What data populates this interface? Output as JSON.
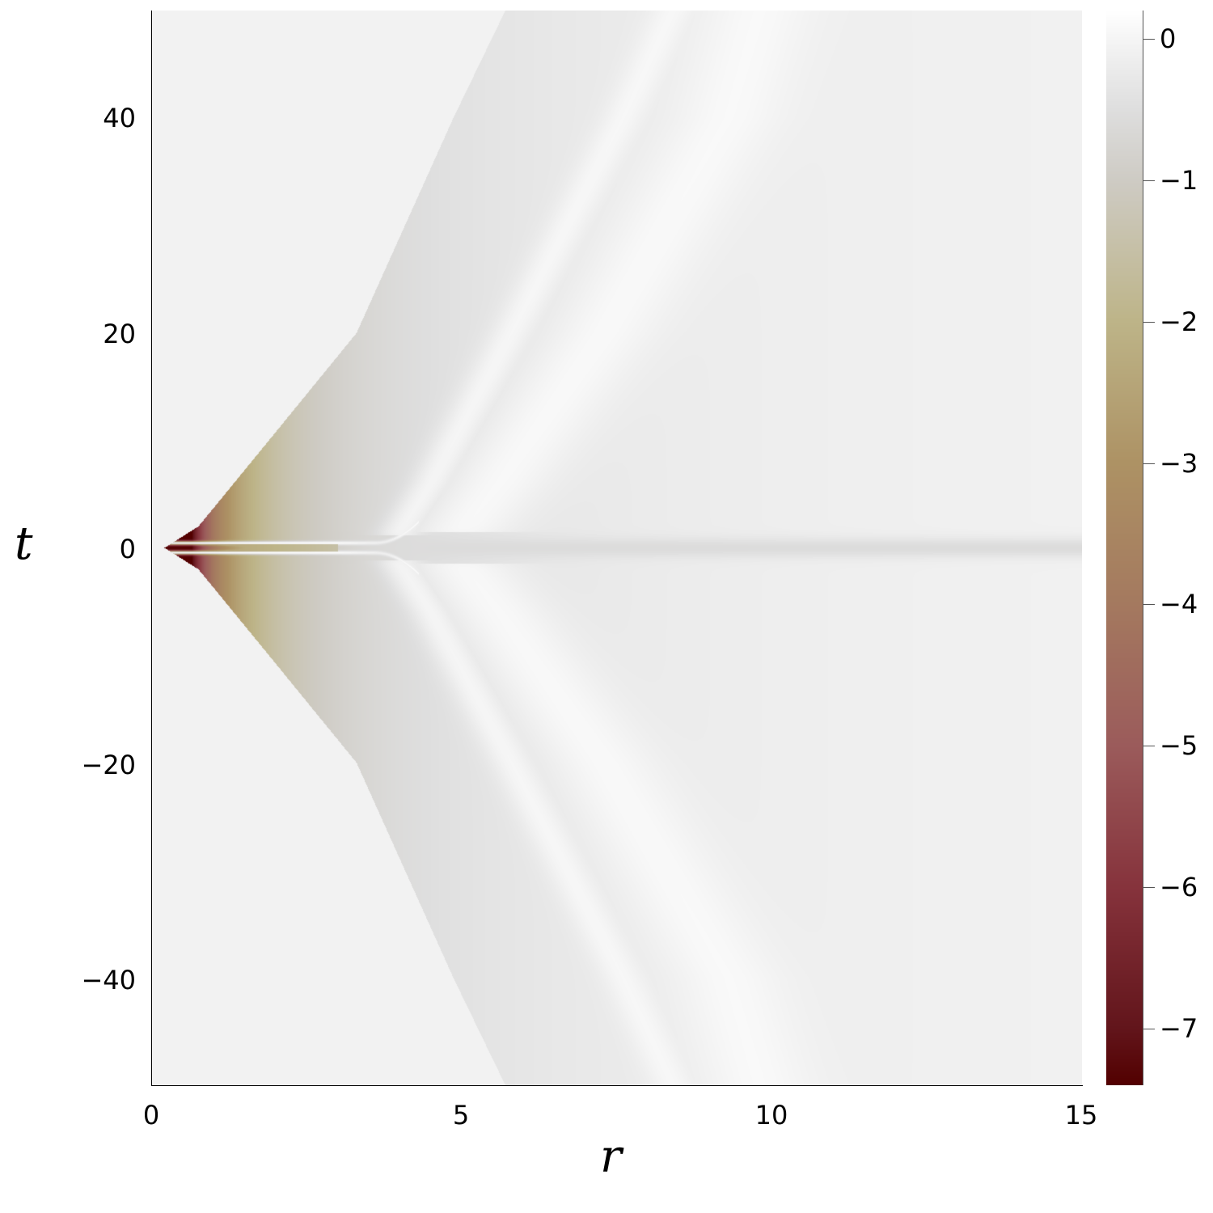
{
  "chart_data": {
    "type": "heatmap",
    "title": "",
    "xlabel": "r",
    "ylabel": "t",
    "xlim": [
      0,
      15
    ],
    "ylim": [
      -50,
      50
    ],
    "xticks": [
      0,
      5,
      10,
      15
    ],
    "xtick_labels": [
      "0",
      "5",
      "10",
      "15"
    ],
    "yticks": [
      40,
      20,
      0,
      -20,
      -40
    ],
    "ytick_labels": [
      "40",
      "20",
      "0",
      "−20",
      "−40"
    ],
    "grid": false,
    "background_color": "#f2f2f2",
    "domain_boundary": {
      "abs_t": [
        0,
        2,
        8.9,
        20,
        40,
        50
      ],
      "r": [
        0.2,
        0.75,
        1.73,
        3.3,
        4.86,
        5.7
      ]
    },
    "colorbar": {
      "range": [
        -7.4,
        0.2
      ],
      "ticks": [
        0,
        -1,
        -2,
        -3,
        -4,
        -5,
        -6,
        -7
      ],
      "tick_labels": [
        "0",
        "−1",
        "−2",
        "−3",
        "−4",
        "−5",
        "−6",
        "−7"
      ],
      "colormap": [
        {
          "v": 0.2,
          "c": "#ffffff"
        },
        {
          "v": 0.0,
          "c": "#f5f5f5"
        },
        {
          "v": -0.5,
          "c": "#dedede"
        },
        {
          "v": -1.0,
          "c": "#cecbc4"
        },
        {
          "v": -2.0,
          "c": "#bdb488"
        },
        {
          "v": -3.0,
          "c": "#ad9264"
        },
        {
          "v": -4.0,
          "c": "#a4795f"
        },
        {
          "v": -5.0,
          "c": "#9b5b5b"
        },
        {
          "v": -6.0,
          "c": "#86333c"
        },
        {
          "v": -7.0,
          "c": "#62151b"
        },
        {
          "v": -7.4,
          "c": "#520000"
        }
      ]
    }
  }
}
